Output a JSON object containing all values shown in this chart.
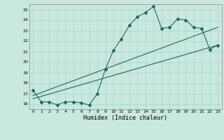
{
  "bg_color": "#c8e8e0",
  "grid_color": "#b0d4cc",
  "line_color": "#1a6b5a",
  "xlabel": "Humidex (Indice chaleur)",
  "ylim": [
    15.5,
    25.5
  ],
  "xlim": [
    -0.5,
    23.5
  ],
  "yticks": [
    16,
    17,
    18,
    19,
    20,
    21,
    22,
    23,
    24,
    25
  ],
  "xticks": [
    0,
    1,
    2,
    3,
    4,
    5,
    6,
    7,
    8,
    9,
    10,
    11,
    12,
    13,
    14,
    15,
    16,
    17,
    18,
    19,
    20,
    21,
    22,
    23
  ],
  "line1_x": [
    0,
    1,
    2,
    3,
    4,
    5,
    6,
    7,
    8,
    9,
    10,
    11,
    12,
    13,
    14,
    15,
    16,
    17,
    18,
    19,
    20,
    21,
    22,
    23
  ],
  "line1_y": [
    17.3,
    16.2,
    16.2,
    15.9,
    16.2,
    16.2,
    16.1,
    15.9,
    17.0,
    19.3,
    21.1,
    22.2,
    23.5,
    24.3,
    24.7,
    25.3,
    23.2,
    23.3,
    24.1,
    24.0,
    23.3,
    23.2,
    21.2,
    21.6
  ],
  "line2_x": [
    0,
    23
  ],
  "line2_y": [
    16.8,
    23.3
  ],
  "line3_x": [
    0,
    23
  ],
  "line3_y": [
    16.5,
    21.6
  ]
}
